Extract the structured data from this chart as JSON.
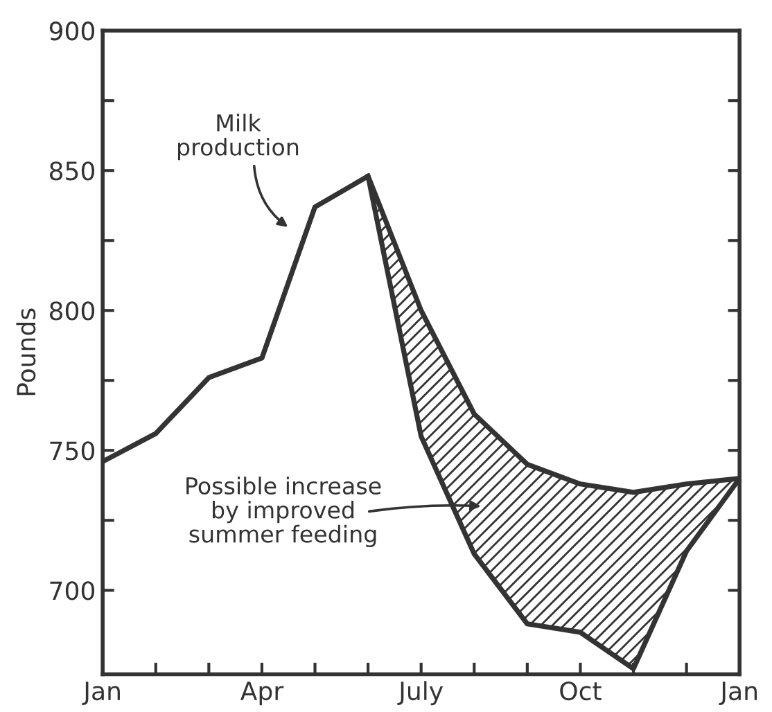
{
  "chart_data": {
    "type": "line",
    "ylabel": "Pounds",
    "categories": [
      "Jan",
      null,
      null,
      "Apr",
      null,
      null,
      "July",
      null,
      null,
      "Oct",
      null,
      null,
      "Jan"
    ],
    "series": [
      {
        "color": "#333333",
        "values": [
          746,
          756,
          776,
          783,
          837,
          848,
          755,
          713,
          688,
          685,
          672,
          714,
          740
        ]
      },
      {
        "color": "#333333",
        "values": [
          null,
          null,
          null,
          null,
          null,
          848,
          800,
          763,
          745,
          738,
          735,
          738,
          740
        ],
        "lower": [
          null,
          null,
          null,
          null,
          null,
          848,
          755,
          713,
          688,
          685,
          672,
          714,
          740
        ],
        "upper": [
          null,
          null,
          null,
          null,
          null,
          848,
          800,
          763,
          745,
          738,
          735,
          738,
          740
        ]
      }
    ],
    "ylim": [
      670,
      900
    ],
    "yticks": [
      700,
      {
        "value": 725,
        "label": null
      },
      750,
      {
        "value": 775,
        "label": null
      },
      800,
      {
        "value": 825,
        "label": null
      },
      850,
      {
        "value": 875,
        "label": null
      },
      900
    ],
    "annotations": [
      "Milk production",
      "Possible increase by improved summer feeding"
    ],
    "grid": false,
    "legend": false,
    "marker": "none",
    "line_style": "solid"
  }
}
